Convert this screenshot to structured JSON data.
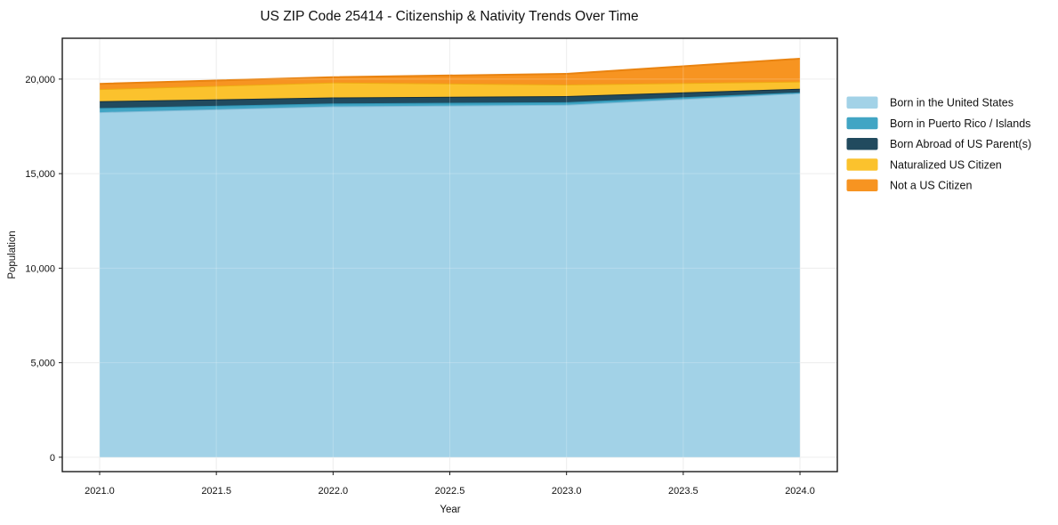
{
  "title": "US ZIP Code 25414 - Citizenship & Nativity Trends Over Time",
  "chart_data": {
    "type": "area",
    "stacked": true,
    "title": "US ZIP Code 25414 - Citizenship & Nativity Trends Over Time",
    "xlabel": "Year",
    "ylabel": "Population",
    "x": [
      2021,
      2022,
      2023,
      2024
    ],
    "series": [
      {
        "name": "Born in the United States",
        "values": [
          18250,
          18560,
          18640,
          19250
        ],
        "fill": "#a2d2e7",
        "line": "#86bdd8"
      },
      {
        "name": "Born in Puerto Rico / Islands",
        "values": [
          220,
          150,
          140,
          50
        ],
        "fill": "#41a5c4",
        "line": "#2e93b3"
      },
      {
        "name": "Born Abroad of US Parent(s)",
        "values": [
          360,
          320,
          320,
          190
        ],
        "fill": "#214a5e",
        "line": "#152f3c"
      },
      {
        "name": "Naturalized US Citizen",
        "values": [
          640,
          790,
          610,
          380
        ],
        "fill": "#fbc22d",
        "line": "#eeab12"
      },
      {
        "name": "Not a US Citizen",
        "values": [
          280,
          280,
          570,
          1210
        ],
        "fill": "#f79421",
        "line": "#e98310"
      }
    ],
    "totals": [
      19750,
      20100,
      20280,
      21080
    ],
    "xticks": {
      "values": [
        2021.0,
        2021.5,
        2022.0,
        2022.5,
        2023.0,
        2023.5,
        2024.0
      ],
      "labels": [
        "2021.0",
        "2021.5",
        "2022.0",
        "2022.5",
        "2023.0",
        "2023.5",
        "2024.0"
      ]
    },
    "yticks": {
      "values": [
        0,
        5000,
        10000,
        15000,
        20000
      ],
      "labels": [
        "0",
        "5,000",
        "10,000",
        "15,000",
        "20,000"
      ]
    },
    "xlim": [
      2020.84,
      2024.16
    ],
    "ylim": [
      -760,
      22160
    ],
    "grid": true,
    "legend_position": "right"
  },
  "colors": {
    "background": "#ffffff",
    "grid": "#e9e9e9",
    "spine": "#1a1a1a",
    "text": "#111111"
  }
}
